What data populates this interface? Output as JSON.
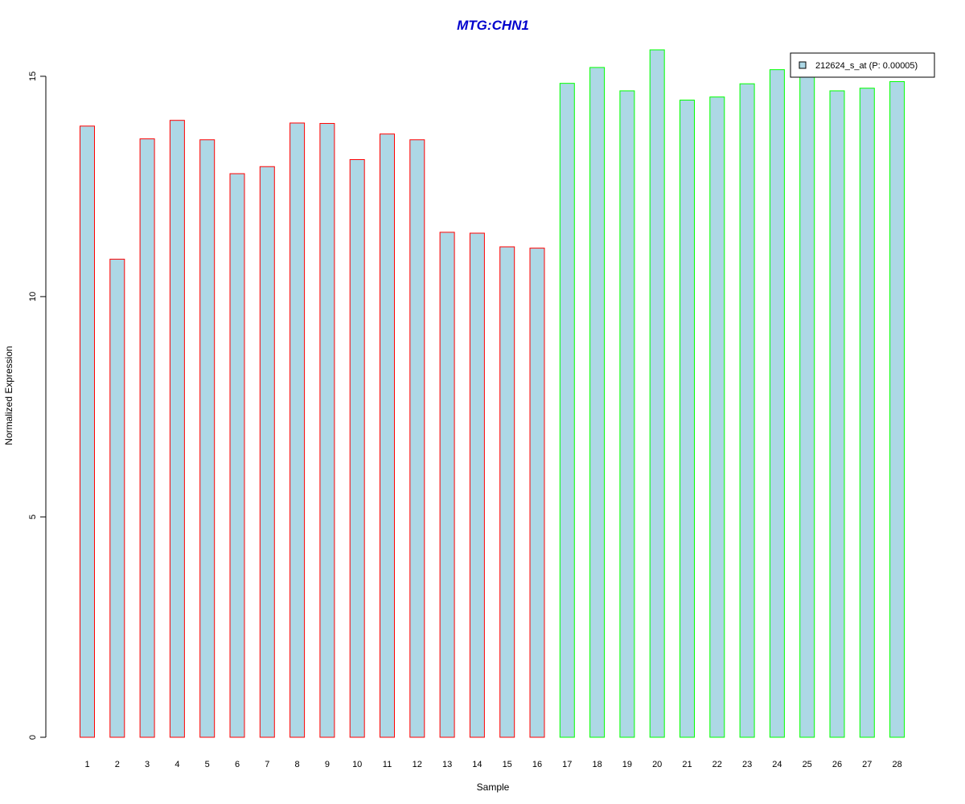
{
  "chart_data": {
    "type": "bar",
    "title": "MTG:CHN1",
    "xlabel": "Sample",
    "ylabel": "Normalized Expression",
    "categories": [
      "1",
      "2",
      "3",
      "4",
      "5",
      "6",
      "7",
      "8",
      "9",
      "10",
      "11",
      "12",
      "13",
      "14",
      "15",
      "16",
      "17",
      "18",
      "19",
      "20",
      "21",
      "22",
      "23",
      "24",
      "25",
      "26",
      "27",
      "28"
    ],
    "values": [
      13.87,
      10.85,
      13.58,
      14.0,
      13.56,
      12.79,
      12.95,
      13.94,
      13.93,
      13.11,
      13.69,
      13.56,
      11.46,
      11.44,
      11.13,
      11.1,
      14.84,
      15.2,
      14.67,
      15.6,
      14.46,
      14.53,
      14.83,
      15.15,
      15.0,
      14.67,
      14.73,
      14.88
    ],
    "groups": [
      1,
      1,
      1,
      1,
      1,
      1,
      1,
      1,
      1,
      1,
      1,
      1,
      1,
      1,
      1,
      1,
      2,
      2,
      2,
      2,
      2,
      2,
      2,
      2,
      2,
      2,
      2,
      2
    ],
    "yticks": [
      0,
      5,
      10,
      15
    ],
    "ylim": [
      0,
      15.6
    ],
    "grid": false,
    "legend": {
      "label": "212624_s_at (P: 0.00005)",
      "placement": "top-right"
    },
    "colors": {
      "bar_fill": "#add8e6",
      "group1_border": "#ff0000",
      "group2_border": "#00ff00",
      "title": "#0000cd",
      "axis": "#000000"
    }
  }
}
